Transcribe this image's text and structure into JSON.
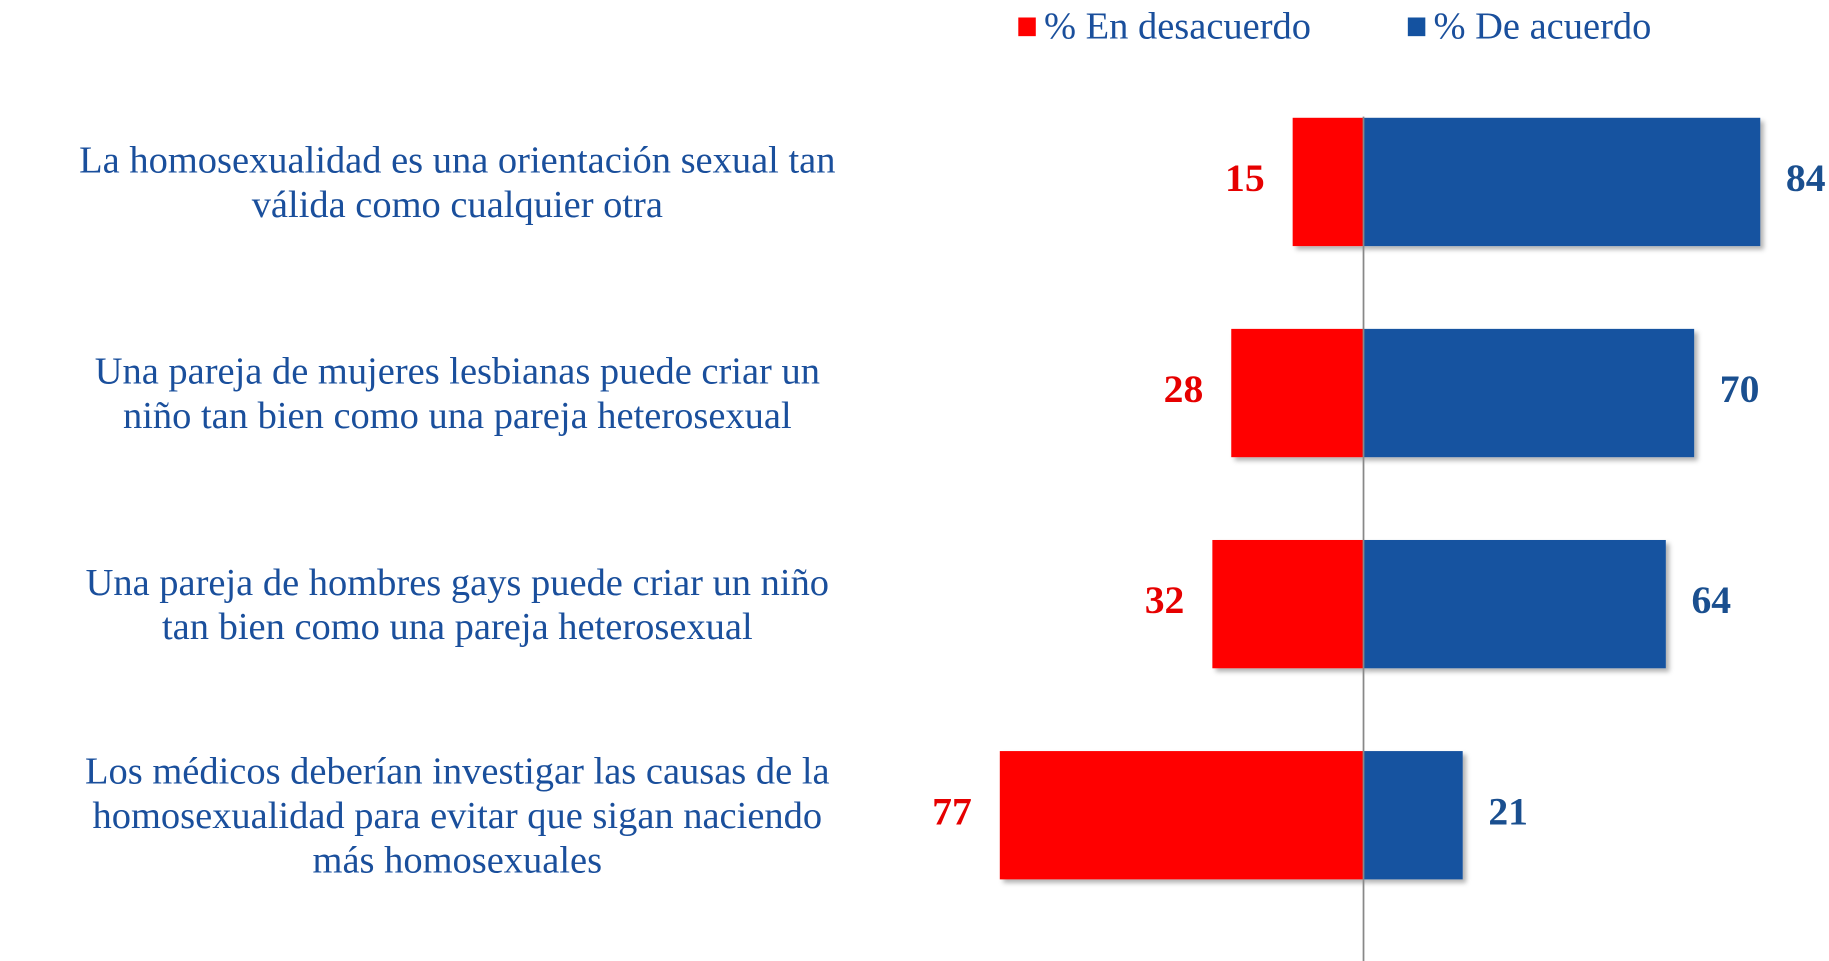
{
  "chart_data": {
    "type": "diverging_bar",
    "categories": [
      [
        "La homosexualidad es una orientación sexual tan",
        "válida como cualquier otra"
      ],
      [
        "Una pareja de mujeres lesbianas puede criar un",
        "niño tan bien como una pareja heterosexual"
      ],
      [
        "Una pareja de hombres gays puede criar un niño",
        "tan bien como una pareja heterosexual"
      ],
      [
        "Los médicos deberían investigar las causas de la",
        "homosexualidad para evitar que sigan naciendo",
        "más homosexuales"
      ]
    ],
    "series": [
      {
        "name": "% En desacuerdo",
        "color": "#ff0000",
        "label_color": "#e60000",
        "side": "left",
        "values": [
          15,
          28,
          32,
          77
        ]
      },
      {
        "name": "% De acuerdo",
        "color": "#1452a0",
        "label_color": "#1a4f8f",
        "side": "right",
        "values": [
          84,
          70,
          64,
          21
        ]
      }
    ],
    "legend": "top"
  }
}
